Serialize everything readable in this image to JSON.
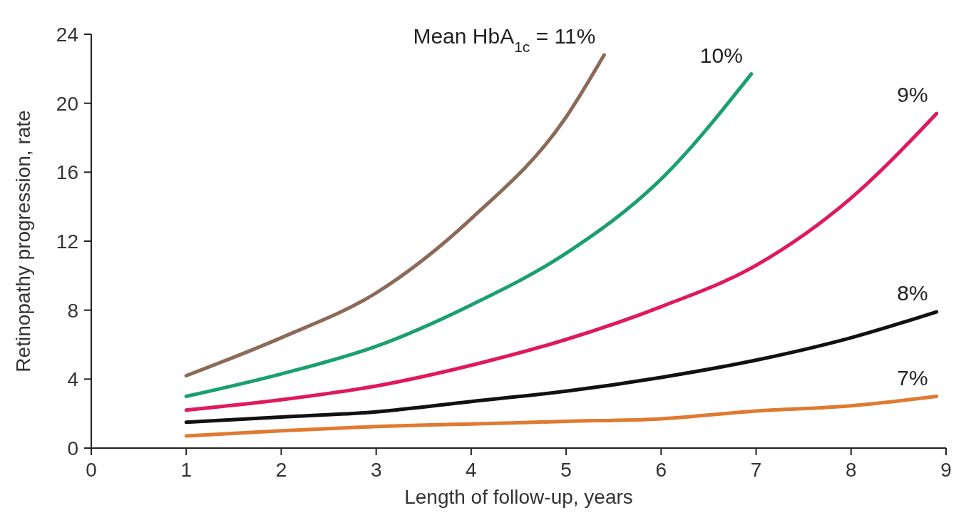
{
  "chart_data": {
    "type": "line",
    "xlabel": "Length of follow-up, years",
    "ylabel": "Retinopathy progression, rate",
    "xlim": [
      0,
      9
    ],
    "xticks": [
      0,
      1,
      2,
      3,
      4,
      5,
      6,
      7,
      8,
      9
    ],
    "ylim": [
      0,
      24
    ],
    "yticks": [
      0,
      4,
      8,
      12,
      16,
      20,
      24
    ],
    "grid": false,
    "legend": false,
    "marker": "none",
    "line_style": "solid",
    "series": [
      {
        "name": "Mean HbA$_{1c}$ = 11%",
        "color": "#8b6a5a",
        "x": [
          1,
          2,
          3,
          4,
          5,
          5.4
        ],
        "values": [
          4.2,
          6.4,
          9,
          13.3,
          19.2,
          22.8
        ]
      },
      {
        "name": "10%",
        "color": "#1aa06e",
        "x": [
          1,
          2,
          3,
          4,
          5,
          6,
          6.95
        ],
        "values": [
          3.0,
          4.3,
          5.9,
          8.3,
          11.3,
          15.6,
          21.7
        ]
      },
      {
        "name": "9%",
        "color": "#e0195a",
        "x": [
          1,
          2,
          3,
          4,
          5,
          6,
          7,
          8,
          8.9
        ],
        "values": [
          2.2,
          2.8,
          3.6,
          4.8,
          6.3,
          8.2,
          10.6,
          14.5,
          19.4
        ]
      },
      {
        "name": "8%",
        "color": "#111111",
        "x": [
          1,
          2,
          3,
          4,
          5,
          6,
          7,
          8,
          8.9
        ],
        "values": [
          1.5,
          1.8,
          2.1,
          2.7,
          3.3,
          4.1,
          5.1,
          6.4,
          7.9
        ]
      },
      {
        "name": "7%",
        "color": "#e07a30",
        "x": [
          1,
          2,
          3,
          4,
          5,
          6,
          7,
          8,
          8.9
        ],
        "values": [
          0.7,
          1.0,
          1.25,
          1.4,
          1.55,
          1.7,
          2.15,
          2.45,
          3.0
        ]
      }
    ]
  }
}
